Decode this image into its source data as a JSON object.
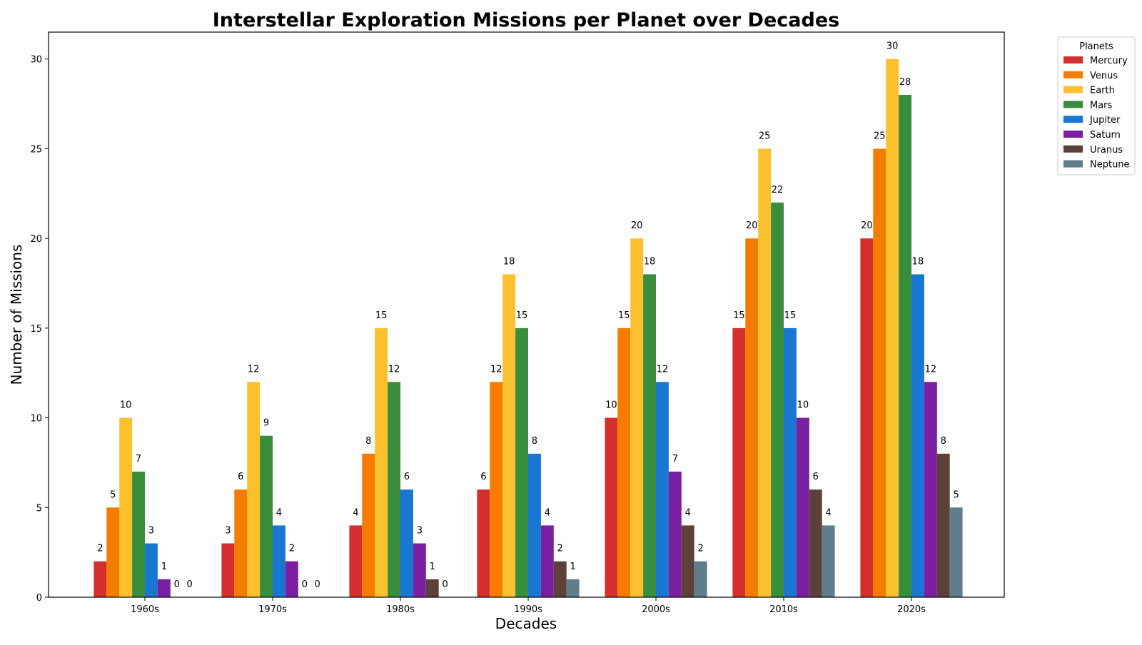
{
  "chart_data": {
    "type": "bar",
    "title": "Interstellar Exploration Missions per Planet over Decades",
    "xlabel": "Decades",
    "ylabel": "Number of Missions",
    "ylim": [
      0,
      31.5
    ],
    "yticks": [
      0,
      5,
      10,
      15,
      20,
      25,
      30
    ],
    "grid": false,
    "categories": [
      "1960s",
      "1970s",
      "1980s",
      "1990s",
      "2000s",
      "2010s",
      "2020s"
    ],
    "legend": {
      "title": "Planets",
      "placement": "outside-top-right"
    },
    "series": [
      {
        "name": "Mercury",
        "color": "#d32f2f",
        "values": [
          2,
          3,
          4,
          6,
          10,
          15,
          20
        ]
      },
      {
        "name": "Venus",
        "color": "#f57c00",
        "values": [
          5,
          6,
          8,
          12,
          15,
          20,
          25
        ]
      },
      {
        "name": "Earth",
        "color": "#fbc02d",
        "values": [
          10,
          12,
          15,
          18,
          20,
          25,
          30
        ]
      },
      {
        "name": "Mars",
        "color": "#388e3c",
        "values": [
          7,
          9,
          12,
          15,
          18,
          22,
          28
        ]
      },
      {
        "name": "Jupiter",
        "color": "#1976d2",
        "values": [
          3,
          4,
          6,
          8,
          12,
          15,
          18
        ]
      },
      {
        "name": "Saturn",
        "color": "#7b1fa2",
        "values": [
          1,
          2,
          3,
          4,
          7,
          10,
          12
        ]
      },
      {
        "name": "Uranus",
        "color": "#5d4037",
        "values": [
          0,
          0,
          1,
          2,
          4,
          6,
          8
        ]
      },
      {
        "name": "Neptune",
        "color": "#607d8b",
        "values": [
          0,
          0,
          0,
          1,
          2,
          4,
          5
        ]
      }
    ]
  }
}
